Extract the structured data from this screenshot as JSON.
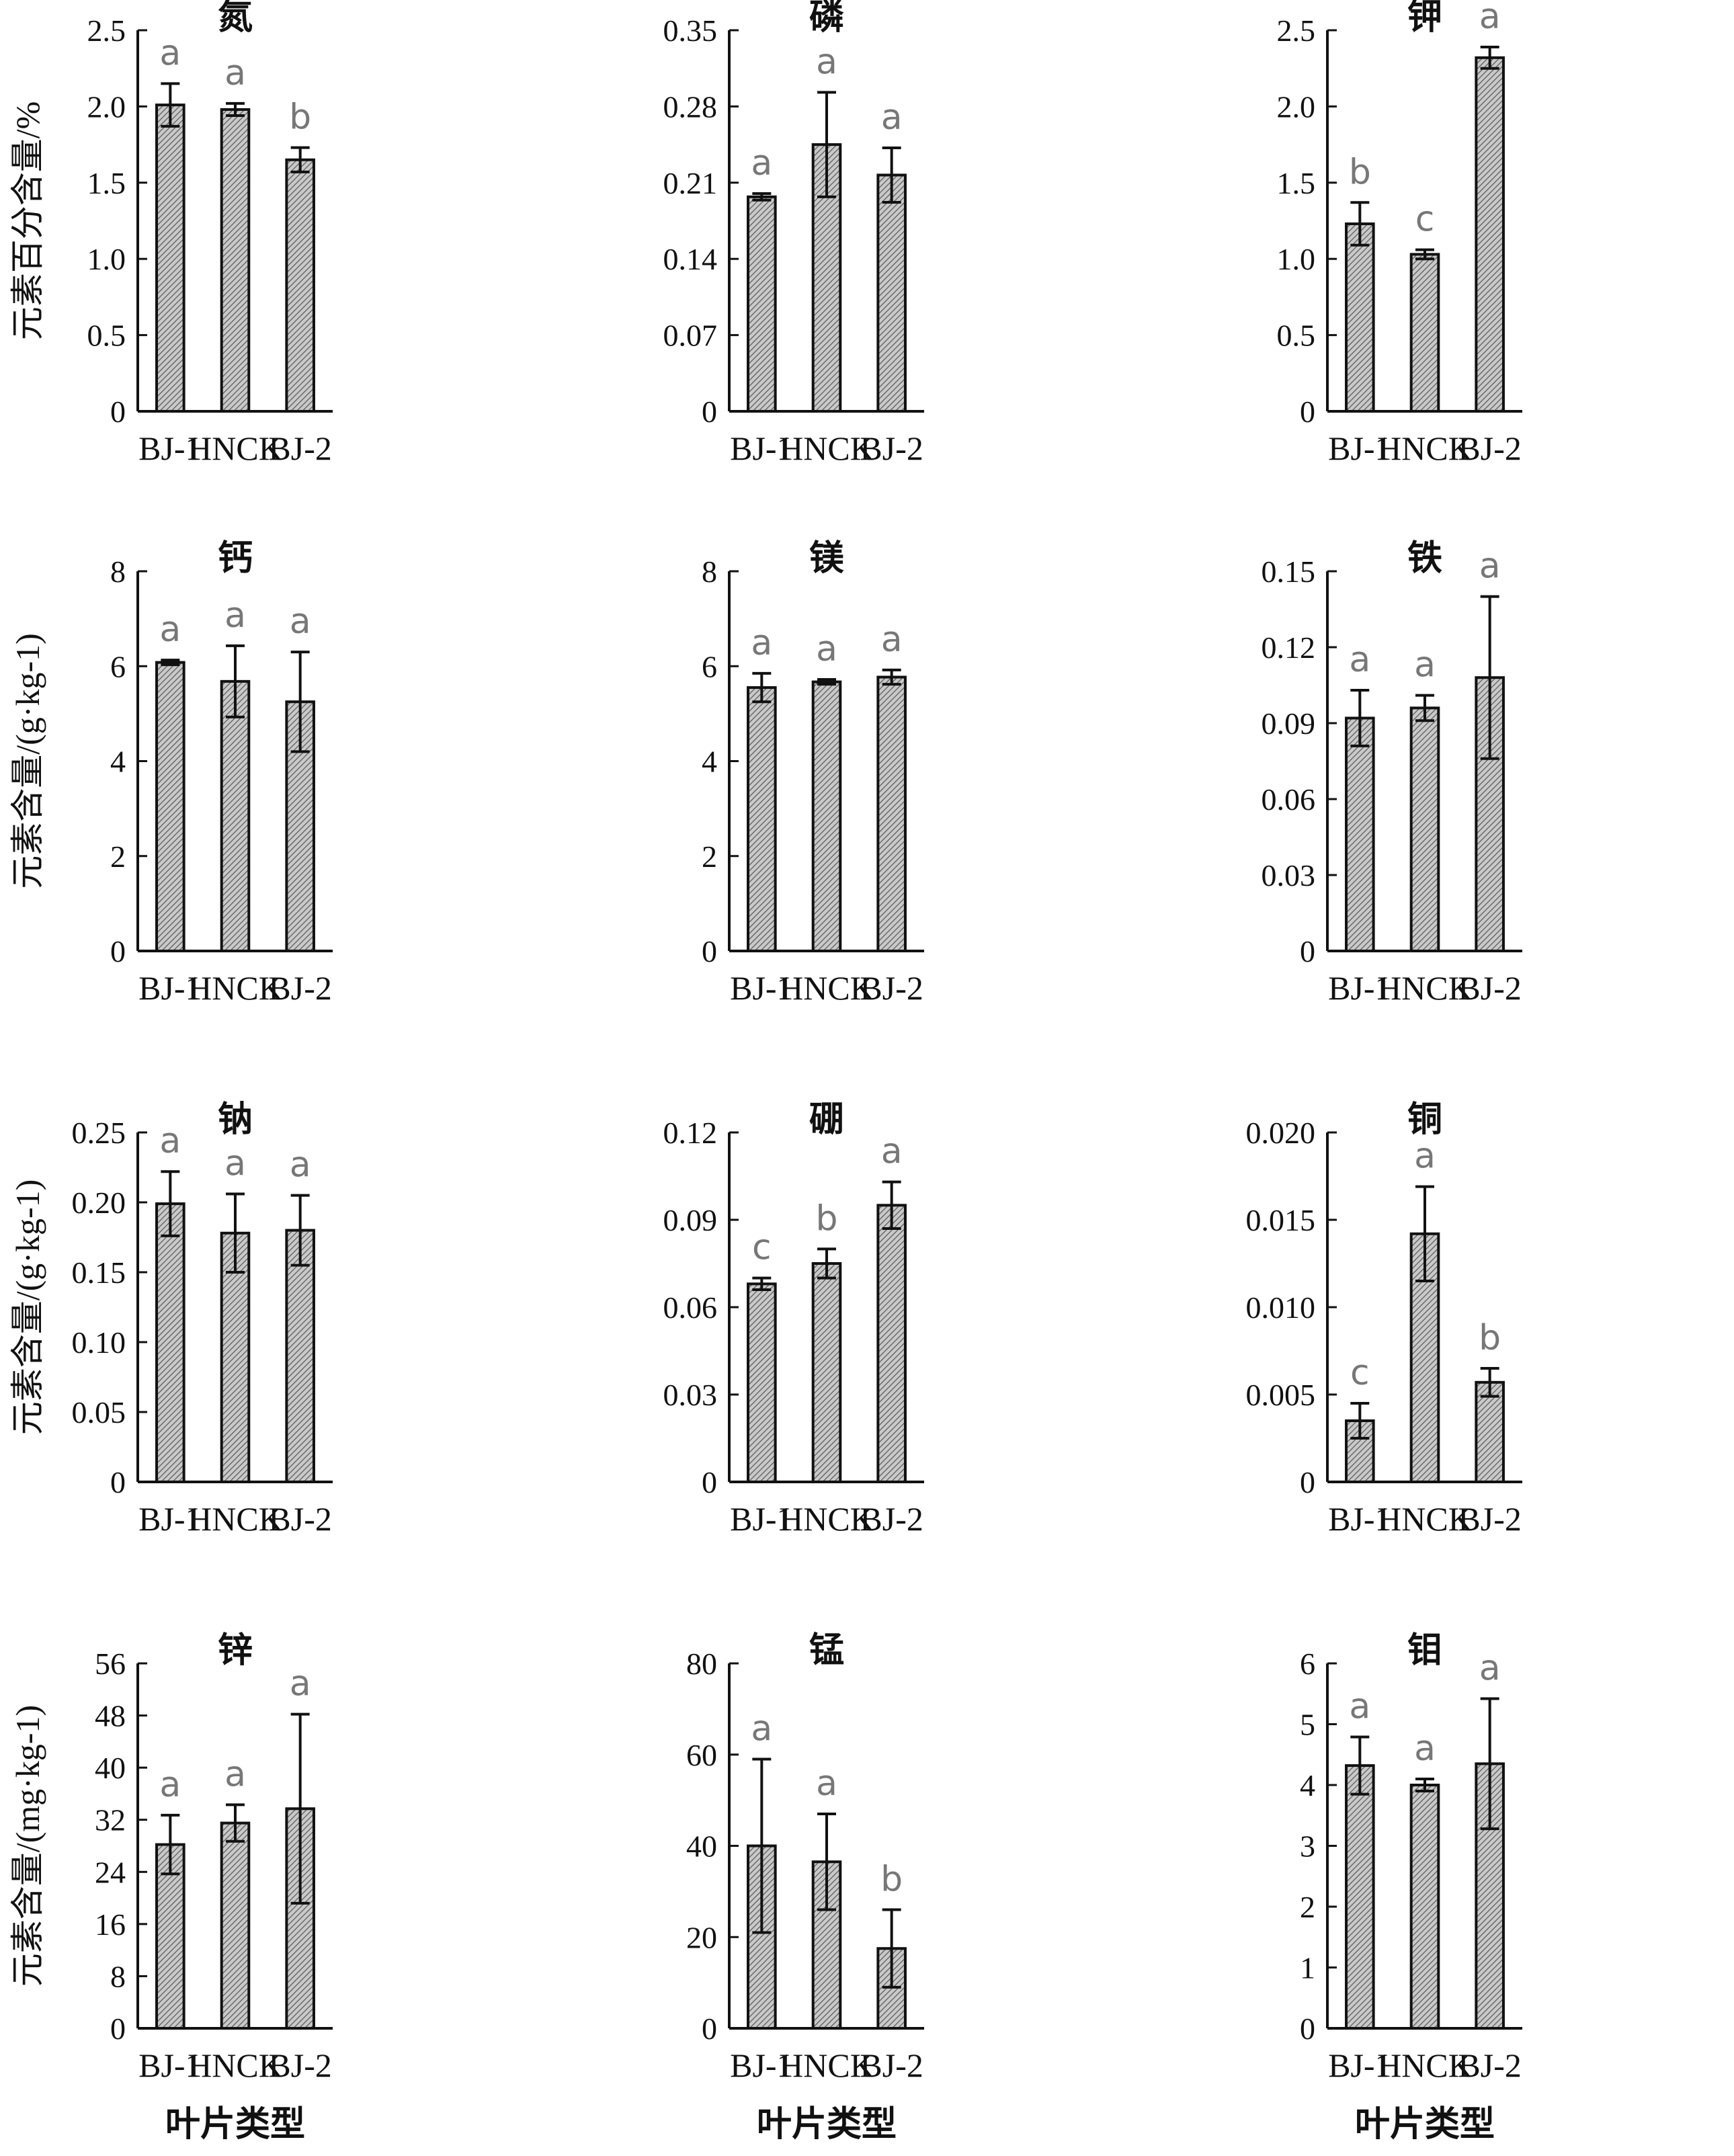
{
  "figure": {
    "x_axis_label": "叶片类型",
    "y_axis_labels": [
      "元素百分含量/%",
      "元素含量/(g·kg-1)",
      "元素含量/(g·kg-1)",
      "元素含量/(mg·kg-1)"
    ]
  },
  "colors": {
    "bar_fill": "#c9c9c9",
    "hatch": "#555555",
    "axis": "#111111",
    "sig_letter": "#777777"
  },
  "chart_data": [
    {
      "type": "bar",
      "title": "氮",
      "categories": [
        "BJ-1",
        "HNCK",
        "BJ-2"
      ],
      "values": [
        2.01,
        1.98,
        1.65
      ],
      "errors": [
        0.14,
        0.04,
        0.08
      ],
      "significance": [
        "a",
        "a",
        "b"
      ],
      "ylim": [
        0,
        2.5
      ],
      "yticks": [
        "0",
        "0.5",
        "1.0",
        "1.5",
        "2.0",
        "2.5"
      ],
      "ylabel": "元素百分含量/%",
      "xlabel": ""
    },
    {
      "type": "bar",
      "title": "磷",
      "categories": [
        "BJ-1",
        "HNCK",
        "BJ-2"
      ],
      "values": [
        0.197,
        0.245,
        0.217
      ],
      "errors": [
        0.003,
        0.048,
        0.025
      ],
      "significance": [
        "a",
        "a",
        "a"
      ],
      "ylim": [
        0,
        0.35
      ],
      "yticks": [
        "0",
        "0.07",
        "0.14",
        "0.21",
        "0.28",
        "0.35"
      ],
      "ylabel": "",
      "xlabel": ""
    },
    {
      "type": "bar",
      "title": "钾",
      "categories": [
        "BJ-1",
        "HNCK",
        "BJ-2"
      ],
      "values": [
        1.23,
        1.03,
        2.32
      ],
      "errors": [
        0.14,
        0.03,
        0.07
      ],
      "significance": [
        "b",
        "c",
        "a"
      ],
      "ylim": [
        0,
        2.5
      ],
      "yticks": [
        "0",
        "0.5",
        "1.0",
        "1.5",
        "2.0",
        "2.5"
      ],
      "ylabel": "",
      "xlabel": ""
    },
    {
      "type": "bar",
      "title": "钙",
      "categories": [
        "BJ-1",
        "HNCK",
        "BJ-2"
      ],
      "values": [
        6.08,
        5.68,
        5.25
      ],
      "errors": [
        0.05,
        0.75,
        1.05
      ],
      "significance": [
        "a",
        "a",
        "a"
      ],
      "ylim": [
        0,
        8
      ],
      "yticks": [
        "0",
        "2",
        "4",
        "6",
        "8"
      ],
      "ylabel": "元素含量/(g·kg-1)",
      "xlabel": ""
    },
    {
      "type": "bar",
      "title": "镁",
      "categories": [
        "BJ-1",
        "HNCK",
        "BJ-2"
      ],
      "values": [
        5.55,
        5.67,
        5.77
      ],
      "errors": [
        0.3,
        0.05,
        0.15
      ],
      "significance": [
        "a",
        "a",
        "a"
      ],
      "ylim": [
        0,
        8
      ],
      "yticks": [
        "0",
        "2",
        "4",
        "6",
        "8"
      ],
      "ylabel": "",
      "xlabel": ""
    },
    {
      "type": "bar",
      "title": "铁",
      "categories": [
        "BJ-1",
        "HNCK",
        "BJ-2"
      ],
      "values": [
        0.092,
        0.096,
        0.108
      ],
      "errors": [
        0.011,
        0.005,
        0.032
      ],
      "significance": [
        "a",
        "a",
        "a"
      ],
      "ylim": [
        0,
        0.15
      ],
      "yticks": [
        "0",
        "0.03",
        "0.06",
        "0.09",
        "0.12",
        "0.15"
      ],
      "ylabel": "",
      "xlabel": ""
    },
    {
      "type": "bar",
      "title": "钠",
      "categories": [
        "BJ-1",
        "HNCK",
        "BJ-2"
      ],
      "values": [
        0.199,
        0.178,
        0.18
      ],
      "errors": [
        0.023,
        0.028,
        0.025
      ],
      "significance": [
        "a",
        "a",
        "a"
      ],
      "ylim": [
        0,
        0.25
      ],
      "yticks": [
        "0",
        "0.05",
        "0.10",
        "0.15",
        "0.20",
        "0.25"
      ],
      "ylabel": "元素含量/(g·kg-1)",
      "xlabel": ""
    },
    {
      "type": "bar",
      "title": "硼",
      "categories": [
        "BJ-1",
        "HNCK",
        "BJ-2"
      ],
      "values": [
        0.068,
        0.075,
        0.095
      ],
      "errors": [
        0.002,
        0.005,
        0.008
      ],
      "significance": [
        "c",
        "b",
        "a"
      ],
      "ylim": [
        0,
        0.12
      ],
      "yticks": [
        "0",
        "0.03",
        "0.06",
        "0.09",
        "0.12"
      ],
      "ylabel": "",
      "xlabel": ""
    },
    {
      "type": "bar",
      "title": "铜",
      "categories": [
        "BJ-1",
        "HNCK",
        "BJ-2"
      ],
      "values": [
        0.0035,
        0.0142,
        0.0057
      ],
      "errors": [
        0.001,
        0.0027,
        0.0008
      ],
      "significance": [
        "c",
        "a",
        "b"
      ],
      "ylim": [
        0,
        0.02
      ],
      "yticks": [
        "0",
        "0.005",
        "0.010",
        "0.015",
        "0.020"
      ],
      "ylabel": "",
      "xlabel": ""
    },
    {
      "type": "bar",
      "title": "锌",
      "categories": [
        "BJ-1",
        "HNCK",
        "BJ-2"
      ],
      "values": [
        28.2,
        31.5,
        33.7
      ],
      "errors": [
        4.5,
        2.8,
        14.5
      ],
      "significance": [
        "a",
        "a",
        "a"
      ],
      "ylim": [
        0,
        56
      ],
      "yticks": [
        "0",
        "8",
        "16",
        "24",
        "32",
        "40",
        "48",
        "56"
      ],
      "ylabel": "元素含量/(mg·kg-1)",
      "xlabel": "叶片类型"
    },
    {
      "type": "bar",
      "title": "锰",
      "categories": [
        "BJ-1",
        "HNCK",
        "BJ-2"
      ],
      "values": [
        40,
        36.5,
        17.5
      ],
      "errors": [
        19,
        10.5,
        8.5
      ],
      "significance": [
        "a",
        "a",
        "b"
      ],
      "ylim": [
        0,
        80
      ],
      "yticks": [
        "0",
        "20",
        "40",
        "60",
        "80"
      ],
      "ylabel": "",
      "xlabel": "叶片类型"
    },
    {
      "type": "bar",
      "title": "钼",
      "categories": [
        "BJ-1",
        "HNCK",
        "BJ-2"
      ],
      "values": [
        4.32,
        4.0,
        4.35
      ],
      "errors": [
        0.47,
        0.1,
        1.07
      ],
      "significance": [
        "a",
        "a",
        "a"
      ],
      "ylim": [
        0,
        6
      ],
      "yticks": [
        "0",
        "1",
        "2",
        "3",
        "4",
        "5",
        "6"
      ],
      "ylabel": "",
      "xlabel": "叶片类型"
    }
  ]
}
